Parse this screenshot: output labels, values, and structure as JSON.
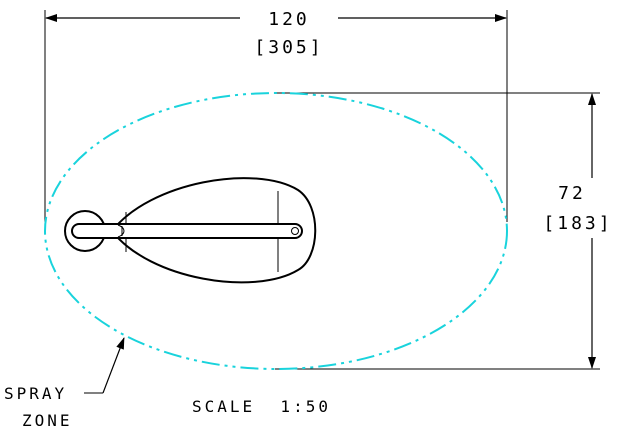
{
  "dimensions": {
    "width_in": "120",
    "width_mm": "[305]",
    "height_in": "72",
    "height_mm": "[183]"
  },
  "labels": {
    "spray_line1": "SPRAY",
    "spray_line2": "ZONE",
    "scale": "SCALE  1:50"
  },
  "colors": {
    "spray_zone": "#19d3dc",
    "lines": "#000000",
    "background": "#ffffff"
  }
}
